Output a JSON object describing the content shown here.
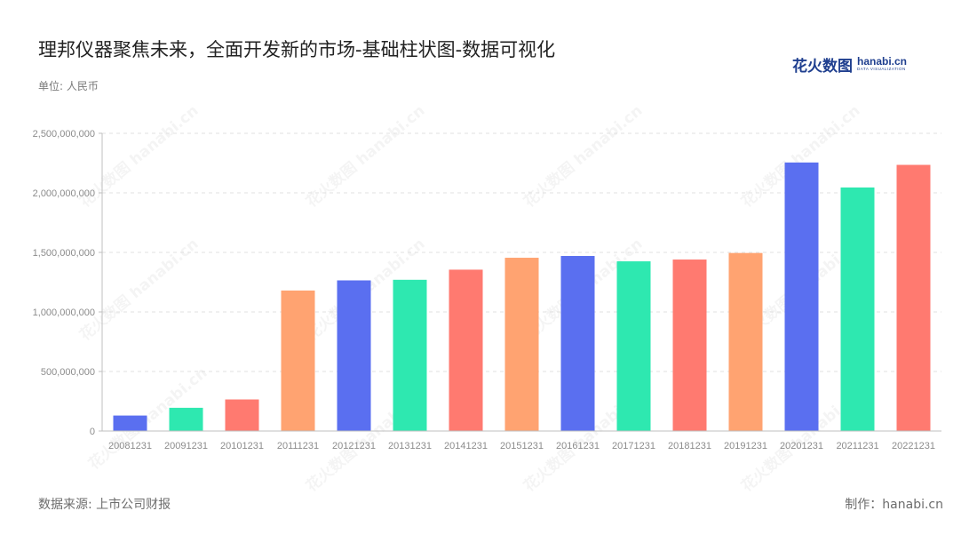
{
  "title": "理邦仪器聚焦未来，全面开发新的市场-基础柱状图-数据可视化",
  "unit_label": "单位: 人民币",
  "logo": {
    "cn": "花火数图",
    "en": "hanabi.cn",
    "sub": "DATA VISUALIZATION"
  },
  "watermark": "花火数图 hanabi.cn",
  "footer": {
    "source": "数据来源: 上市公司财报",
    "credit": "制作：hanabi.cn"
  },
  "chart_data": {
    "type": "bar",
    "categories": [
      "20081231",
      "20091231",
      "20101231",
      "20111231",
      "20121231",
      "20131231",
      "20141231",
      "20151231",
      "20161231",
      "20171231",
      "20181231",
      "20191231",
      "20201231",
      "20211231",
      "20221231"
    ],
    "values": [
      130000000,
      195000000,
      265000000,
      1180000000,
      1265000000,
      1270000000,
      1355000000,
      1455000000,
      1470000000,
      1425000000,
      1440000000,
      1495000000,
      2255000000,
      2045000000,
      2235000000
    ],
    "colors": [
      "#5a6ff0",
      "#2ee8b0",
      "#ff7a70",
      "#ffa371"
    ],
    "ylim": [
      0,
      2500000000
    ],
    "yticks": [
      0,
      500000000,
      1000000000,
      1500000000,
      2000000000,
      2500000000
    ],
    "ytick_labels": [
      "0",
      "500,000,000",
      "1,000,000,000",
      "1,500,000,000",
      "2,000,000,000",
      "2,500,000,000"
    ],
    "grid": true,
    "legend": "none",
    "xlabel": "",
    "ylabel": ""
  }
}
